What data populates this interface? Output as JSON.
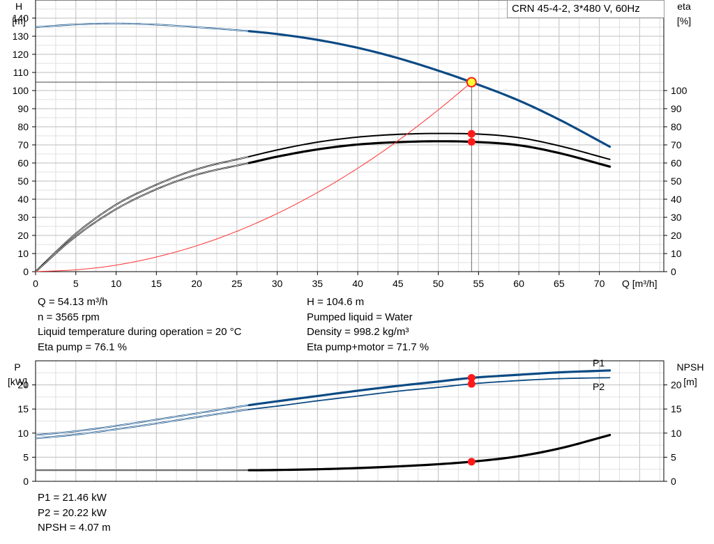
{
  "model": "CRN 45-4-2, 3*480 V, 60Hz",
  "top_info_left": [
    "Q = 54.13 m³/h",
    "n = 3565 rpm",
    "Liquid temperature during operation = 20 °C",
    "Eta pump = 76.1 %"
  ],
  "top_info_right": [
    "H = 104.6 m",
    "Pumped liquid = Water",
    "Density = 998.2 kg/m³",
    "Eta pump+motor = 71.7 %"
  ],
  "bottom_info": [
    "P1 = 21.46 kW",
    "P2 = 20.22 kW",
    "NPSH = 4.07 m"
  ],
  "colors": {
    "head": "#0b4a84",
    "power": "#0b4a84",
    "eta": "#000000",
    "system": "#ff3030",
    "duty_point": "#ff1a1a",
    "duty_fill": "#ffff33",
    "grid": "#c8c8c8"
  },
  "chart_data": [
    {
      "type": "line",
      "name": "head-efficiency",
      "x_label": "Q [m³/h]",
      "y_left_label": [
        "H",
        "[m]"
      ],
      "y_right_label": [
        "eta",
        "[%]"
      ],
      "xlim": [
        0,
        78
      ],
      "ylim_left": [
        0,
        150
      ],
      "ylim_right": [
        0,
        150
      ],
      "x_ticks": [
        0,
        5,
        10,
        15,
        20,
        25,
        30,
        35,
        40,
        45,
        50,
        55,
        60,
        65,
        70
      ],
      "y_left_ticks": [
        0,
        10,
        20,
        30,
        40,
        50,
        60,
        70,
        80,
        90,
        100,
        110,
        120,
        130,
        140
      ],
      "y_right_ticks": [
        0,
        10,
        20,
        30,
        40,
        50,
        60,
        70,
        80,
        90,
        100
      ],
      "grid": true,
      "series": [
        {
          "key": "head",
          "axis": "left",
          "bold_from": 26.5,
          "x": [
            0,
            5,
            10,
            15,
            20,
            26.5,
            30,
            35,
            40,
            45,
            50,
            54.13,
            60,
            65,
            71.3
          ],
          "y": [
            135,
            136.5,
            137,
            136.4,
            135,
            132.8,
            131.2,
            128,
            123.6,
            117.9,
            111,
            104.6,
            94.5,
            84,
            69
          ]
        },
        {
          "key": "eta_pump",
          "axis": "right",
          "bold_from": 26.5,
          "weight": 2.0,
          "x": [
            0,
            5,
            10,
            15,
            20,
            26.5,
            30,
            35,
            40,
            45,
            50,
            54.13,
            60,
            65,
            71.3
          ],
          "y": [
            0,
            21,
            37,
            48,
            56.5,
            63.5,
            67.2,
            71.5,
            74.3,
            75.8,
            76.3,
            76.1,
            74,
            69.5,
            62
          ]
        },
        {
          "key": "eta_total",
          "axis": "right",
          "bold_from": 26.5,
          "weight": 3.2,
          "x": [
            0,
            5,
            10,
            15,
            20,
            26.5,
            30,
            35,
            40,
            45,
            50,
            54.13,
            60,
            65,
            71.3
          ],
          "y": [
            0,
            19.5,
            34.5,
            45.5,
            53.5,
            60,
            63.5,
            67.5,
            70.2,
            71.5,
            72,
            71.7,
            69.8,
            65.5,
            58
          ]
        },
        {
          "key": "system",
          "axis": "left",
          "x": [
            0,
            5,
            10,
            15,
            20,
            25,
            30,
            35,
            40,
            45,
            50,
            54.13
          ],
          "y": [
            0,
            1,
            3.6,
            8.1,
            14.3,
            22.3,
            32.1,
            43.7,
            57.1,
            72.3,
            89.3,
            104.6
          ]
        }
      ],
      "duty_point": {
        "x": 54.13,
        "head": 104.6,
        "eta_pump": 76.1,
        "eta_total": 71.7
      }
    },
    {
      "type": "line",
      "name": "power-npsh",
      "y_left_label": [
        "P",
        "[kW]"
      ],
      "y_right_label": [
        "NPSH",
        "[m]"
      ],
      "xlim": [
        0,
        78
      ],
      "ylim_left": [
        0,
        25
      ],
      "ylim_right": [
        0,
        25
      ],
      "x_ticks": [
        0,
        5,
        10,
        15,
        20,
        25,
        30,
        35,
        40,
        45,
        50,
        55,
        60,
        65,
        70
      ],
      "y_left_ticks": [
        0,
        5,
        10,
        15,
        20
      ],
      "y_right_ticks": [
        0,
        5,
        10,
        15,
        20
      ],
      "grid": true,
      "series": [
        {
          "key": "P1",
          "name": "P1",
          "axis": "left",
          "bold_from": 26.5,
          "weight": 3.2,
          "x": [
            0,
            5,
            10,
            15,
            20,
            26.5,
            30,
            35,
            40,
            45,
            50,
            54.13,
            60,
            65,
            71.3
          ],
          "y": [
            9.6,
            10.4,
            11.5,
            12.8,
            14.1,
            15.8,
            16.6,
            17.7,
            18.8,
            19.8,
            20.7,
            21.46,
            22.1,
            22.6,
            23
          ]
        },
        {
          "key": "P2",
          "name": "P2",
          "axis": "left",
          "bold_from": 26.5,
          "weight": 1.8,
          "x": [
            0,
            5,
            10,
            15,
            20,
            26.5,
            30,
            35,
            40,
            45,
            50,
            54.13,
            60,
            65,
            71.3
          ],
          "y": [
            8.9,
            9.7,
            10.8,
            12.0,
            13.3,
            14.9,
            15.6,
            16.7,
            17.7,
            18.7,
            19.5,
            20.22,
            20.9,
            21.3,
            21.5
          ]
        },
        {
          "key": "npsh",
          "axis": "right",
          "bold_from": 26.5,
          "weight": 3.2,
          "color": "black",
          "x": [
            0,
            26.5,
            30,
            35,
            40,
            45,
            50,
            54.13,
            60,
            65,
            71.3
          ],
          "y": [
            2.3,
            2.3,
            2.35,
            2.5,
            2.75,
            3.1,
            3.55,
            4.07,
            5.2,
            6.8,
            9.6
          ]
        }
      ],
      "duty_point": {
        "x": 54.13,
        "P1": 21.46,
        "P2": 20.22,
        "npsh": 4.07
      }
    }
  ]
}
